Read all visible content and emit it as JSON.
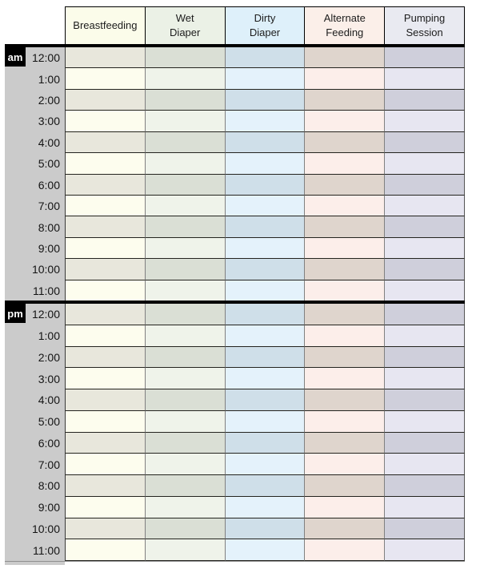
{
  "sheet": {
    "title": "baby-care-hourly-log",
    "columns": [
      {
        "id": "breastfeeding",
        "label": "Breastfeeding",
        "header_bg": "#fbfcea",
        "row_light": "#fdfdee",
        "row_dark": "#e8e7dc"
      },
      {
        "id": "wet-diaper",
        "label": "Wet\nDiaper",
        "header_bg": "#ebf1e6",
        "row_light": "#eff3ea",
        "row_dark": "#dadfd5"
      },
      {
        "id": "dirty-diaper",
        "label": "Dirty\nDiaper",
        "header_bg": "#def0fa",
        "row_light": "#e4f2fb",
        "row_dark": "#cfdfe9"
      },
      {
        "id": "alternate-feeding",
        "label": "Alternate\nFeeding",
        "header_bg": "#fbefe9",
        "row_light": "#fceeea",
        "row_dark": "#dfd5cd"
      },
      {
        "id": "pumping-session",
        "label": "Pumping\nSession",
        "header_bg": "#e9eaf1",
        "row_light": "#e7e6f1",
        "row_dark": "#cfcfdb"
      }
    ],
    "sections": [
      {
        "id": "am",
        "badge": "am",
        "hours": [
          "12:00",
          "1:00",
          "2:00",
          "3:00",
          "4:00",
          "5:00",
          "6:00",
          "7:00",
          "8:00",
          "9:00",
          "10:00",
          "11:00"
        ]
      },
      {
        "id": "pm",
        "badge": "pm",
        "hours": [
          "12:00",
          "1:00",
          "2:00",
          "3:00",
          "4:00",
          "5:00",
          "6:00",
          "7:00",
          "8:00",
          "9:00",
          "10:00",
          "11:00"
        ]
      }
    ],
    "colors": {
      "time_column_bg": "#cbcbcb",
      "separator": "#000000",
      "badge_bg": "#000000",
      "badge_text": "#ffffff",
      "row_border": "#24241f",
      "column_border": "#808080"
    }
  }
}
